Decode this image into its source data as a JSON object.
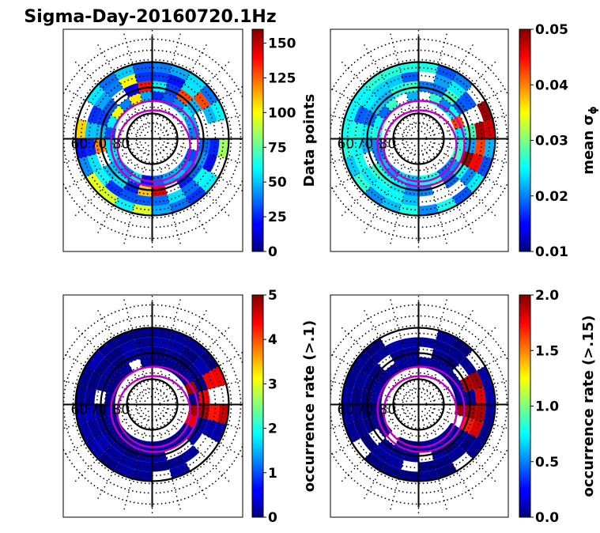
{
  "title": "Sigma-Day-20160720.1Hz",
  "chart_data": [
    {
      "type": "heatmap",
      "projection": "polar",
      "radial_labels": [
        "60",
        "70",
        "80"
      ],
      "colorbar": {
        "label": "Data points",
        "ticks": [
          "0",
          "25",
          "50",
          "75",
          "100",
          "125",
          "150"
        ],
        "range": [
          0,
          160
        ],
        "colormap": "jet"
      },
      "value_range_typical": [
        20,
        60
      ]
    },
    {
      "type": "heatmap",
      "projection": "polar",
      "radial_labels": [
        "60",
        "70",
        "80"
      ],
      "colorbar": {
        "label": "mean σ",
        "label_subscript": "ϕ",
        "ticks": [
          "0.01",
          "0.02",
          "0.03",
          "0.04",
          "0.05"
        ],
        "range": [
          0.01,
          0.05
        ],
        "colormap": "jet"
      },
      "value_range_typical": [
        0.018,
        0.028
      ]
    },
    {
      "type": "heatmap",
      "projection": "polar",
      "radial_labels": [
        "60",
        "70",
        "80"
      ],
      "colorbar": {
        "label": "occurrence rate (>.1)",
        "ticks": [
          "0",
          "1",
          "2",
          "3",
          "4",
          "5"
        ],
        "range": [
          0,
          5
        ],
        "colormap": "jet"
      },
      "value_range_typical": [
        0,
        0.3
      ]
    },
    {
      "type": "heatmap",
      "projection": "polar",
      "radial_labels": [
        "60",
        "70",
        "80"
      ],
      "colorbar": {
        "label": "occurrence rate (>.15)",
        "ticks": [
          "0.0",
          "0.5",
          "1.0",
          "1.5",
          "2.0"
        ],
        "range": [
          0,
          2
        ],
        "colormap": "jet"
      },
      "value_range_typical": [
        0,
        0.1
      ]
    }
  ],
  "colors": {
    "oval": "#c000c0",
    "grid": "#000000"
  }
}
